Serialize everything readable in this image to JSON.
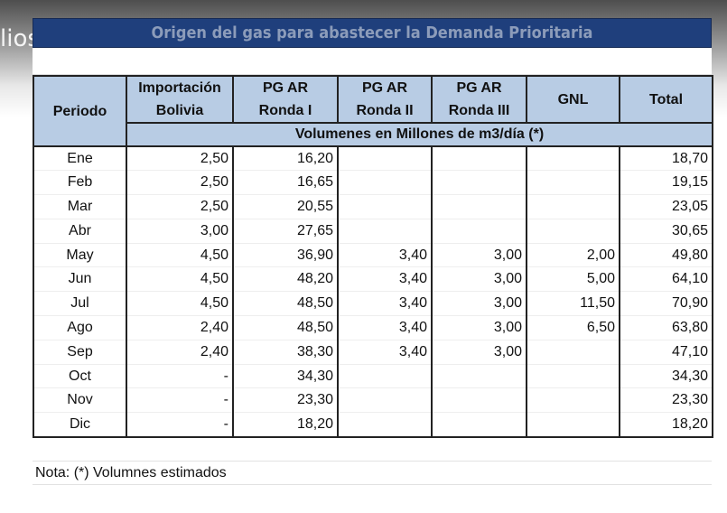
{
  "overlay_text": "lios",
  "title": "Origen del gas para abastecer la Demanda Prioritaria",
  "headers": {
    "periodo": "Periodo",
    "importacion": [
      "Importación",
      "Bolivia"
    ],
    "r1": [
      "PG AR",
      "Ronda I"
    ],
    "r2": [
      "PG AR",
      "Ronda II"
    ],
    "r3": [
      "PG AR",
      "Ronda III"
    ],
    "gnl": "GNL",
    "total": "Total",
    "units": "Volumenes en Millones de m3/día (*)"
  },
  "rows": [
    [
      "Ene",
      "2,50",
      "16,20",
      "",
      "",
      "",
      "18,70"
    ],
    [
      "Feb",
      "2,50",
      "16,65",
      "",
      "",
      "",
      "19,15"
    ],
    [
      "Mar",
      "2,50",
      "20,55",
      "",
      "",
      "",
      "23,05"
    ],
    [
      "Abr",
      "3,00",
      "27,65",
      "",
      "",
      "",
      "30,65"
    ],
    [
      "May",
      "4,50",
      "36,90",
      "3,40",
      "3,00",
      "2,00",
      "49,80"
    ],
    [
      "Jun",
      "4,50",
      "48,20",
      "3,40",
      "3,00",
      "5,00",
      "64,10"
    ],
    [
      "Jul",
      "4,50",
      "48,50",
      "3,40",
      "3,00",
      "11,50",
      "70,90"
    ],
    [
      "Ago",
      "2,40",
      "48,50",
      "3,40",
      "3,00",
      "6,50",
      "63,80"
    ],
    [
      "Sep",
      "2,40",
      "38,30",
      "3,40",
      "3,00",
      "",
      "47,10"
    ],
    [
      "Oct",
      "-",
      "34,30",
      "",
      "",
      "",
      "34,30"
    ],
    [
      "Nov",
      "-",
      "23,30",
      "",
      "",
      "",
      "23,30"
    ],
    [
      "Dic",
      "-",
      "18,20",
      "",
      "",
      "",
      "18,20"
    ]
  ],
  "note": "Nota: (*) Volumnes estimados"
}
